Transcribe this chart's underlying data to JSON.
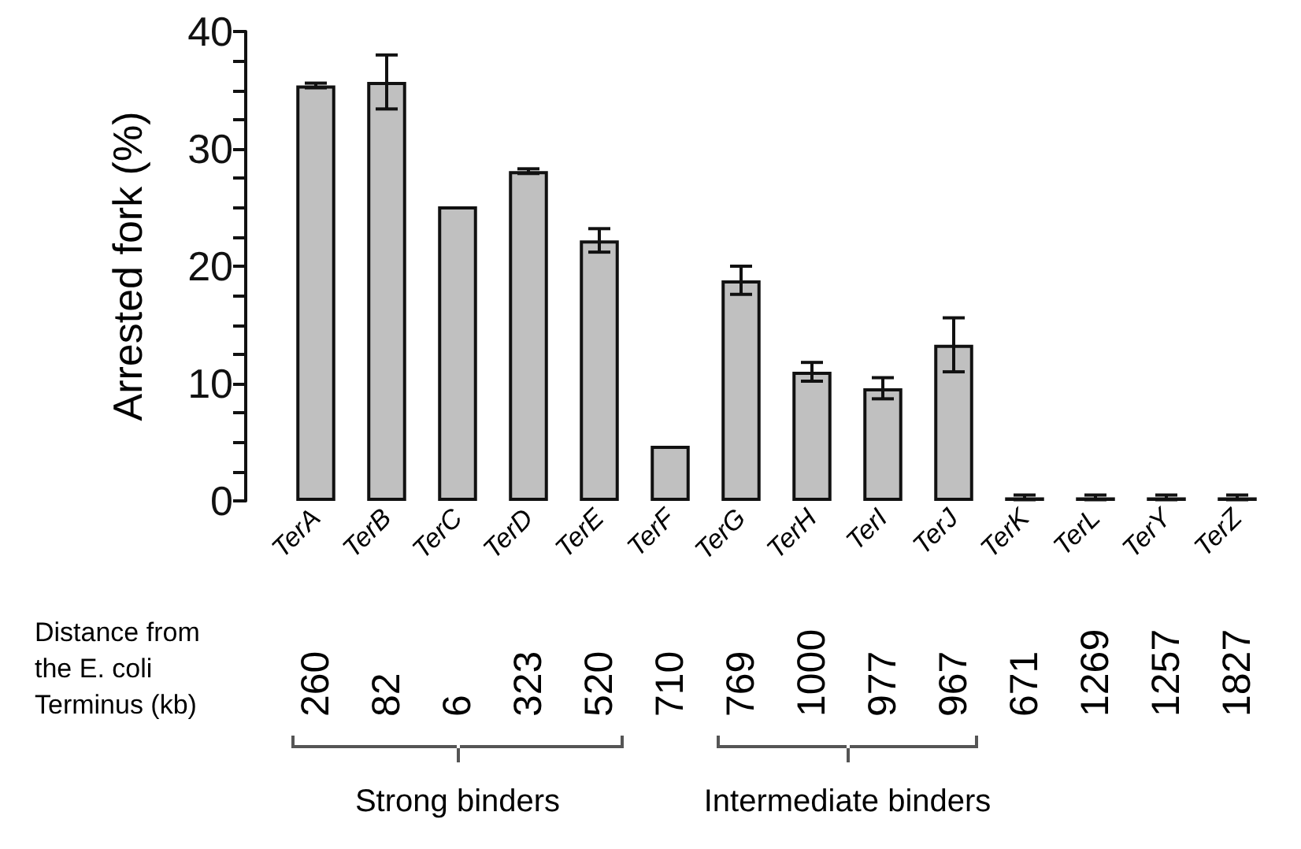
{
  "chart_data": {
    "type": "bar",
    "ylabel": "Arrested fork (%)",
    "categories": [
      "TerA",
      "TerB",
      "TerC",
      "TerD",
      "TerE",
      "TerF",
      "TerG",
      "TerH",
      "TerI",
      "TerJ",
      "TerK",
      "TerL",
      "TerY",
      "TerZ"
    ],
    "values": [
      35.4,
      35.7,
      25.1,
      28.1,
      22.2,
      4.7,
      18.8,
      11.0,
      9.6,
      13.3,
      0.3,
      0.3,
      0.3,
      0.3
    ],
    "errors": [
      0.2,
      2.3,
      null,
      0.2,
      1.0,
      null,
      1.2,
      0.8,
      0.9,
      2.3,
      0.2,
      0.2,
      0.2,
      0.2
    ],
    "color": "#c0c0c0",
    "ylim": [
      0,
      40
    ],
    "yticks": [
      0,
      {
        "value": 2.5,
        "label": null
      },
      {
        "value": 5,
        "label": null
      },
      {
        "value": 7.5,
        "label": null
      },
      10,
      {
        "value": 12.5,
        "label": null
      },
      {
        "value": 15,
        "label": null
      },
      {
        "value": 17.5,
        "label": null
      },
      20,
      {
        "value": 22.5,
        "label": null
      },
      {
        "value": 25,
        "label": null
      },
      {
        "value": 27.5,
        "label": null
      },
      30,
      {
        "value": 32.5,
        "label": null
      },
      {
        "value": 35,
        "label": null
      },
      {
        "value": 37.5,
        "label": null
      },
      40
    ],
    "grid": false,
    "annotations": [
      "Distance from the E. coli Terminus (kb)",
      "260",
      "82",
      "6",
      "323",
      "520",
      "710",
      "769",
      "1000",
      "977",
      "967",
      "671",
      "1269",
      "1257",
      "1827",
      "Strong binders",
      "Intermediate binders"
    ]
  }
}
